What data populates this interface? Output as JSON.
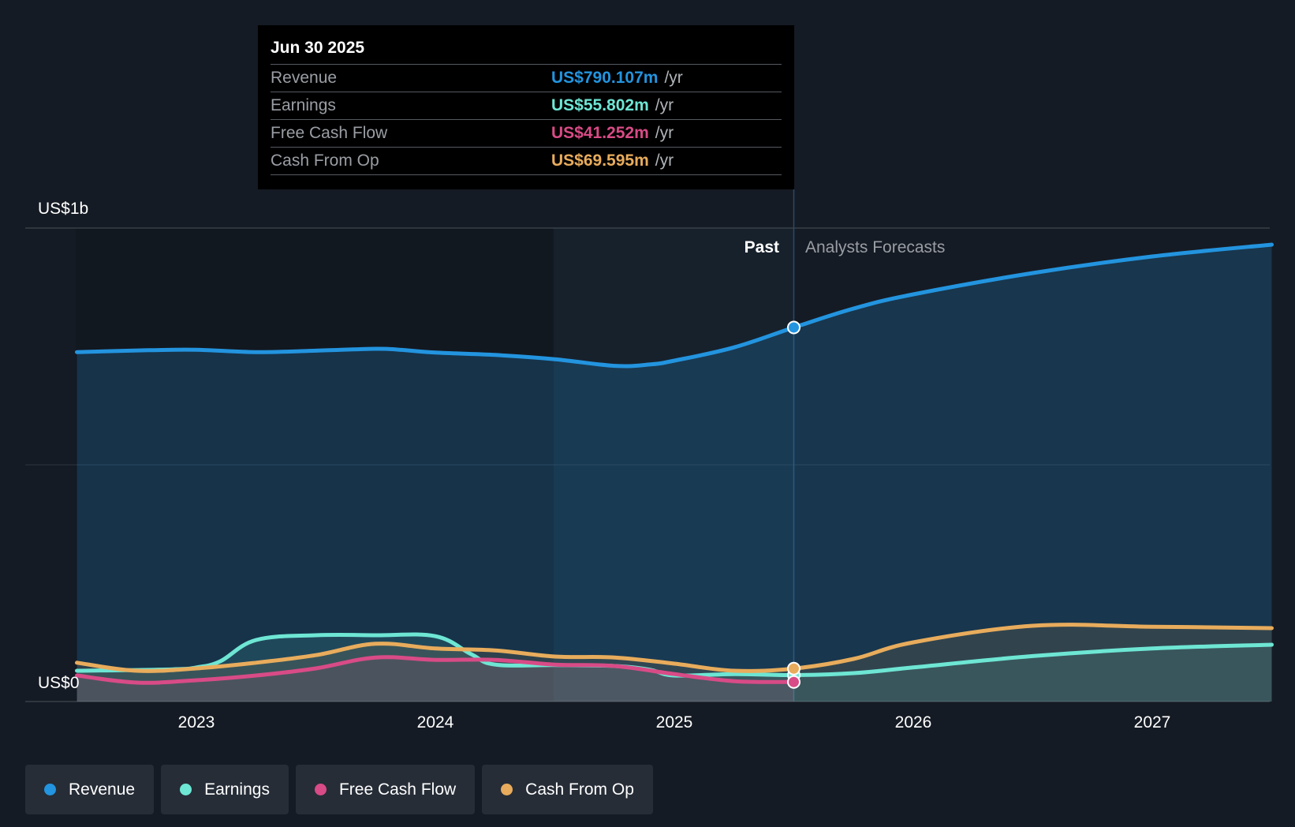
{
  "chart_data": {
    "type": "area",
    "y_axis_labels": {
      "top": "US$1b",
      "bottom": "US$0"
    },
    "ylim": [
      0,
      1000
    ],
    "y_unit": "US$m",
    "x_ticks": [
      "2023",
      "2024",
      "2025",
      "2026",
      "2027"
    ],
    "region_labels": {
      "past": "Past",
      "forecast": "Analysts Forecasts"
    },
    "past_end": 2025.5,
    "grid": true,
    "series": [
      {
        "name": "Revenue",
        "color": "#2394df",
        "points": [
          [
            2022.5,
            738
          ],
          [
            2022.8,
            742
          ],
          [
            2023.0,
            743
          ],
          [
            2023.25,
            738
          ],
          [
            2023.5,
            741
          ],
          [
            2023.75,
            745
          ],
          [
            2023.85,
            743
          ],
          [
            2024.0,
            737
          ],
          [
            2024.25,
            732
          ],
          [
            2024.5,
            723
          ],
          [
            2024.75,
            709
          ],
          [
            2024.9,
            712
          ],
          [
            2025.0,
            720
          ],
          [
            2025.25,
            748
          ],
          [
            2025.5,
            790
          ],
          [
            2025.75,
            830
          ],
          [
            2026.0,
            860
          ],
          [
            2026.5,
            905
          ],
          [
            2027.0,
            940
          ],
          [
            2027.5,
            965
          ]
        ]
      },
      {
        "name": "Earnings",
        "color": "#6ee6d4",
        "points": [
          [
            2022.5,
            65
          ],
          [
            2022.9,
            68
          ],
          [
            2023.0,
            72
          ],
          [
            2023.1,
            85
          ],
          [
            2023.25,
            130
          ],
          [
            2023.5,
            140
          ],
          [
            2023.75,
            140
          ],
          [
            2024.0,
            138
          ],
          [
            2024.15,
            100
          ],
          [
            2024.25,
            78
          ],
          [
            2024.5,
            77
          ],
          [
            2024.75,
            75
          ],
          [
            2024.9,
            67
          ],
          [
            2025.0,
            55
          ],
          [
            2025.25,
            58
          ],
          [
            2025.5,
            55.8
          ],
          [
            2025.75,
            60
          ],
          [
            2026.0,
            72
          ],
          [
            2026.5,
            96
          ],
          [
            2027.0,
            112
          ],
          [
            2027.5,
            120
          ]
        ]
      },
      {
        "name": "Free Cash Flow",
        "color": "#d84b86",
        "points": [
          [
            2022.5,
            55
          ],
          [
            2022.75,
            40
          ],
          [
            2023.0,
            45
          ],
          [
            2023.25,
            55
          ],
          [
            2023.5,
            70
          ],
          [
            2023.75,
            93
          ],
          [
            2024.0,
            88
          ],
          [
            2024.25,
            88
          ],
          [
            2024.5,
            78
          ],
          [
            2024.75,
            75
          ],
          [
            2025.0,
            58
          ],
          [
            2025.25,
            43
          ],
          [
            2025.5,
            41.3
          ]
        ]
      },
      {
        "name": "Cash From Op",
        "color": "#e8ac5c",
        "points": [
          [
            2022.5,
            82
          ],
          [
            2022.75,
            65
          ],
          [
            2023.0,
            70
          ],
          [
            2023.25,
            82
          ],
          [
            2023.5,
            98
          ],
          [
            2023.75,
            122
          ],
          [
            2024.0,
            112
          ],
          [
            2024.25,
            108
          ],
          [
            2024.5,
            95
          ],
          [
            2024.75,
            93
          ],
          [
            2025.0,
            80
          ],
          [
            2025.25,
            65
          ],
          [
            2025.5,
            69.6
          ],
          [
            2025.75,
            90
          ],
          [
            2026.0,
            125
          ],
          [
            2026.5,
            160
          ],
          [
            2027.0,
            158
          ],
          [
            2027.5,
            155
          ]
        ]
      }
    ]
  },
  "tooltip": {
    "date": "Jun 30 2025",
    "unit": "/yr",
    "rows": [
      {
        "label": "Revenue",
        "value": "US$790.107m",
        "color": "#2394df"
      },
      {
        "label": "Earnings",
        "value": "US$55.802m",
        "color": "#6ee6d4"
      },
      {
        "label": "Free Cash Flow",
        "value": "US$41.252m",
        "color": "#d84b86"
      },
      {
        "label": "Cash From Op",
        "value": "US$69.595m",
        "color": "#e8ac5c"
      }
    ]
  },
  "legend": [
    {
      "label": "Revenue",
      "color": "#2394df"
    },
    {
      "label": "Earnings",
      "color": "#6ee6d4"
    },
    {
      "label": "Free Cash Flow",
      "color": "#d84b86"
    },
    {
      "label": "Cash From Op",
      "color": "#e8ac5c"
    }
  ]
}
